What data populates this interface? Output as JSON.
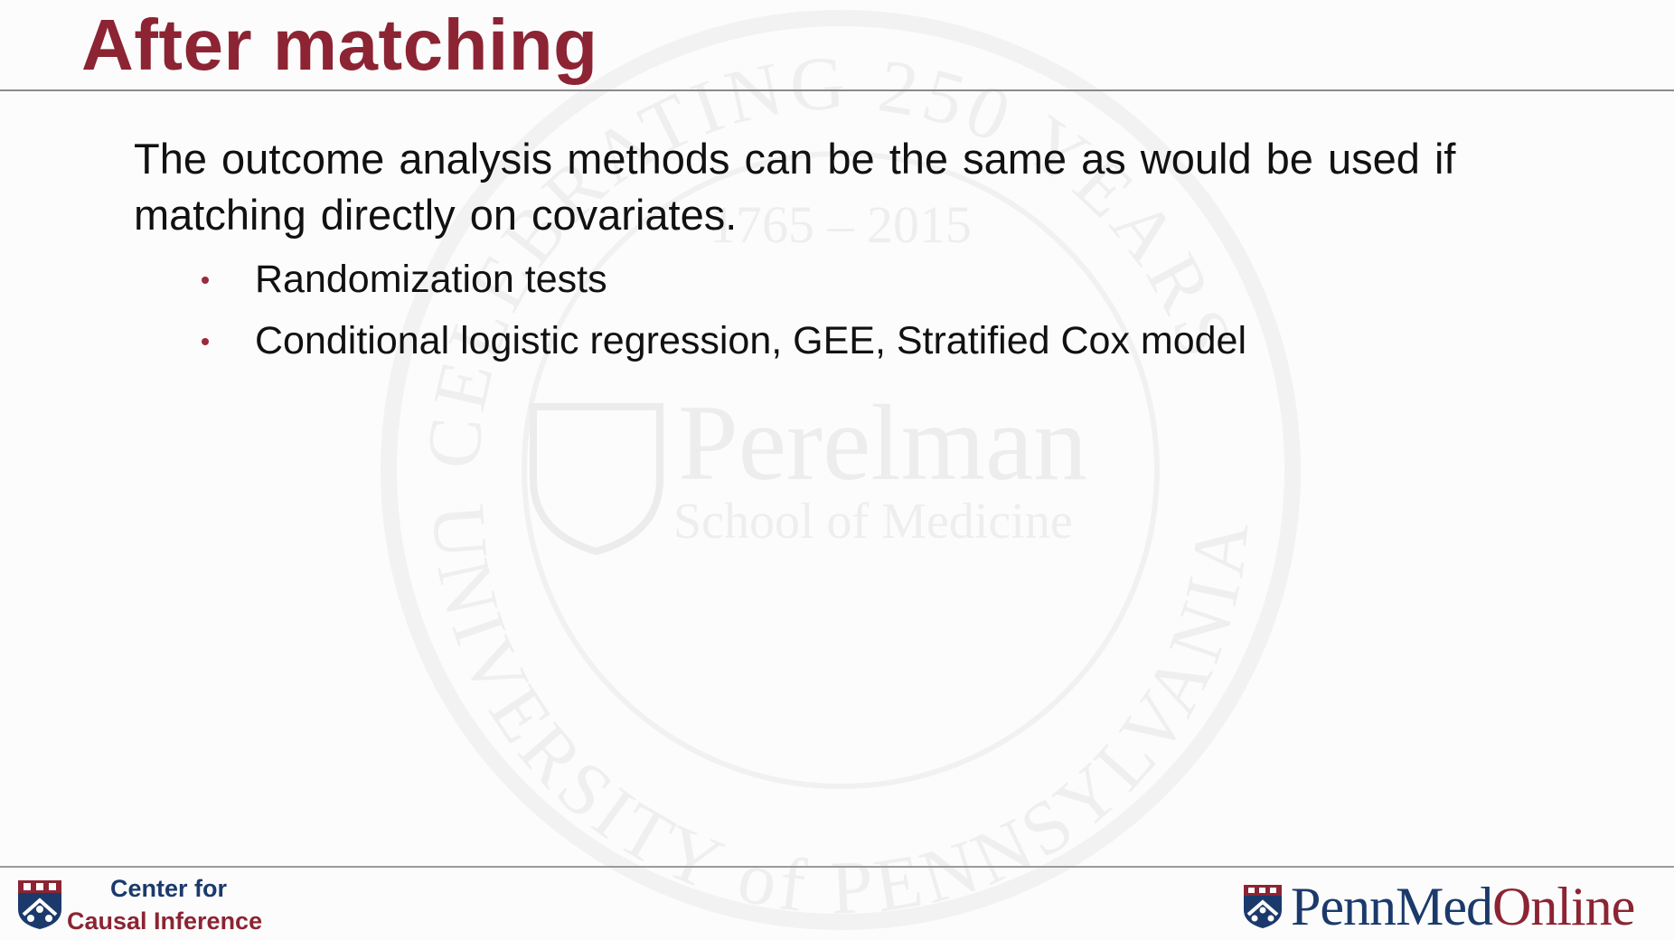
{
  "slide": {
    "title": "After matching",
    "body": "The outcome analysis methods can be the same as would be used if matching directly on covariates.",
    "bullets": [
      "Randomization tests",
      "Conditional logistic regression, GEE, Stratified Cox model"
    ]
  },
  "watermark": {
    "top_arc": "CELEBRATING 250 YEARS",
    "years": "1765 – 2015",
    "school_name": "Perelman",
    "school_sub": "School of Medicine",
    "bottom_arc": "UNIVERSITY of PENNSYLVANIA"
  },
  "footer": {
    "center_line1": "Center for",
    "center_line2": "Causal Inference",
    "brand_penn": "Penn",
    "brand_med": "Med",
    "brand_online": "Online"
  },
  "colors": {
    "title": "#8c2433",
    "navy": "#1b3a6b",
    "bullet": "#9b2a3a"
  }
}
